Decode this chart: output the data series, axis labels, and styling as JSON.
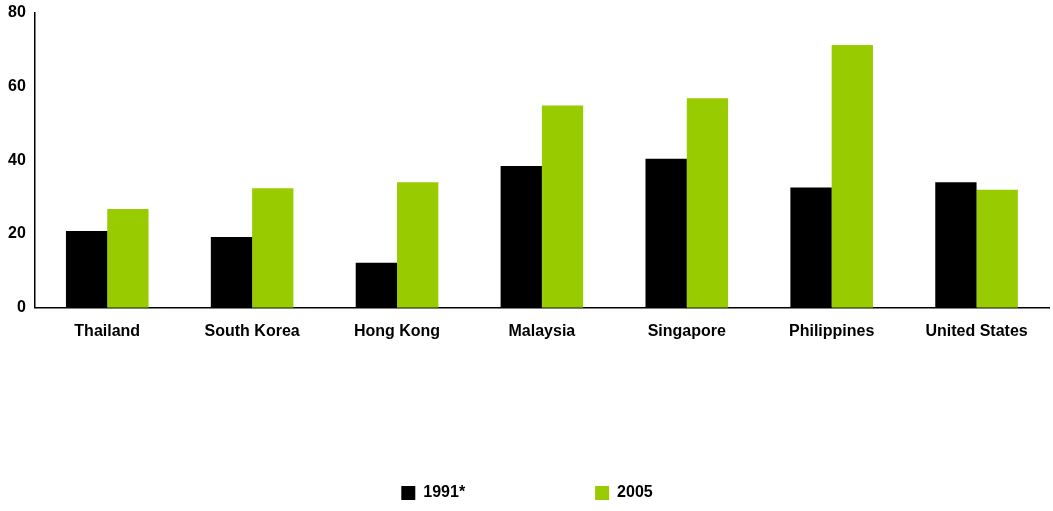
{
  "chart_data": {
    "type": "bar",
    "categories": [
      "Thailand",
      "South Korea",
      "Hong Kong",
      "Malaysia",
      "Singapore",
      "Philippines",
      "United States"
    ],
    "series": [
      {
        "name": "1991*",
        "color": "#000000",
        "values": [
          20.8,
          19.2,
          12.2,
          38.4,
          40.4,
          32.6,
          34
        ]
      },
      {
        "name": "2005",
        "color": "#99cc00",
        "values": [
          26.8,
          32.4,
          34,
          54.8,
          56.8,
          71.2,
          32
        ]
      }
    ],
    "ylim": [
      0,
      80
    ],
    "yticks": [
      0,
      20,
      40,
      60,
      80
    ],
    "grid": false,
    "legend": "bottom"
  }
}
